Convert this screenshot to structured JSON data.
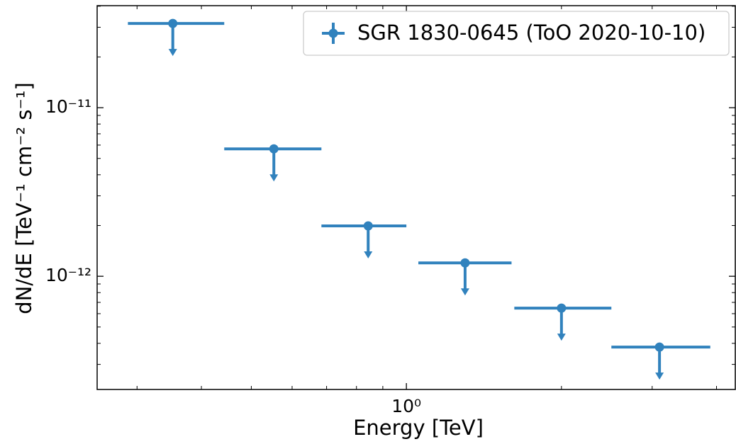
{
  "chart_data": {
    "type": "scatter",
    "x_label": "Energy [TeV]",
    "y_label": "dN/dE [TeV⁻¹ cm⁻² s⁻¹]",
    "x_scale": "log",
    "y_scale": "log",
    "xlim": [
      0.251,
      4.35
    ],
    "ylim": [
      2.13e-13,
      4.03e-11
    ],
    "xticks": [
      {
        "value": 1,
        "label": "10⁰"
      }
    ],
    "yticks": [
      {
        "value": 1e-12,
        "label": "10⁻¹²"
      },
      {
        "value": 1e-11,
        "label": "10⁻¹¹"
      }
    ],
    "legend": "upper right",
    "upper_limits": true,
    "series": [
      {
        "name": "SGR 1830-0645 (ToO 2020-10-10)",
        "color": "#3182bd",
        "x": [
          0.352,
          0.553,
          0.843,
          1.3,
          2.0,
          3.1
        ],
        "x_min": [
          0.288,
          0.443,
          0.684,
          1.055,
          1.62,
          2.5
        ],
        "x_max": [
          0.443,
          0.684,
          1.0,
          1.6,
          2.5,
          3.89
        ],
        "values": [
          3.16e-11,
          5.7e-12,
          1.99e-12,
          1.2e-12,
          6.47e-13,
          3.8e-13
        ]
      }
    ]
  }
}
